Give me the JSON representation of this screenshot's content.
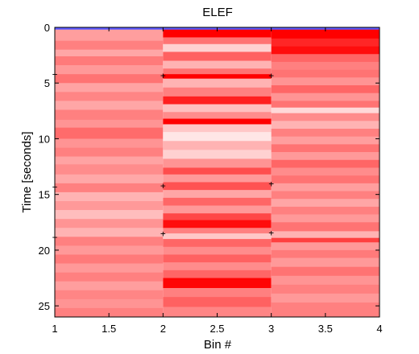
{
  "chart_data": {
    "type": "heatmap",
    "title": "ELEF",
    "xlabel": "Bin #",
    "ylabel": "Time [seconds]",
    "xlim": [
      1,
      4
    ],
    "ylim": [
      0,
      26
    ],
    "y_reversed": true,
    "x_ticks": [
      "1",
      "1.5",
      "2",
      "2.5",
      "3",
      "3.5",
      "4"
    ],
    "y_ticks": [
      "0",
      "5",
      "10",
      "15",
      "20",
      "25"
    ],
    "colormap": {
      "low": "#ffffff",
      "high": "#ff0000",
      "zero": "#0000ff"
    },
    "bins": [
      {
        "range": [
          1,
          2
        ],
        "rows": [
          [
            0.0,
            0.2,
            0.05
          ],
          [
            0.2,
            1.2,
            0.38
          ],
          [
            1.2,
            2.0,
            0.5
          ],
          [
            2.0,
            2.6,
            0.35
          ],
          [
            2.6,
            3.4,
            0.52
          ],
          [
            3.4,
            4.2,
            0.4
          ],
          [
            4.2,
            5.0,
            0.55
          ],
          [
            5.0,
            5.8,
            0.36
          ],
          [
            5.8,
            6.6,
            0.48
          ],
          [
            6.6,
            7.4,
            0.35
          ],
          [
            7.4,
            8.3,
            0.5
          ],
          [
            8.3,
            9.0,
            0.42
          ],
          [
            9.0,
            10.0,
            0.58
          ],
          [
            10.0,
            10.8,
            0.42
          ],
          [
            10.8,
            11.6,
            0.5
          ],
          [
            11.6,
            12.3,
            0.36
          ],
          [
            12.3,
            13.2,
            0.45
          ],
          [
            13.2,
            14.0,
            0.34
          ],
          [
            14.0,
            14.8,
            0.5
          ],
          [
            14.8,
            15.6,
            0.3
          ],
          [
            15.6,
            16.4,
            0.4
          ],
          [
            16.4,
            17.2,
            0.26
          ],
          [
            17.2,
            18.0,
            0.42
          ],
          [
            18.0,
            18.8,
            0.3
          ],
          [
            18.8,
            19.6,
            0.5
          ],
          [
            19.6,
            20.4,
            0.4
          ],
          [
            20.4,
            21.2,
            0.52
          ],
          [
            21.2,
            22.0,
            0.4
          ],
          [
            22.0,
            22.8,
            0.5
          ],
          [
            22.8,
            23.6,
            0.38
          ],
          [
            23.6,
            24.4,
            0.48
          ],
          [
            24.4,
            25.2,
            0.42
          ],
          [
            25.2,
            26.0,
            0.5
          ]
        ]
      },
      {
        "range": [
          2,
          3
        ],
        "rows": [
          [
            0.0,
            0.2,
            0.05
          ],
          [
            0.2,
            0.9,
            1.0
          ],
          [
            0.9,
            1.5,
            0.55
          ],
          [
            1.5,
            2.2,
            0.18
          ],
          [
            2.2,
            3.0,
            0.62
          ],
          [
            3.0,
            3.7,
            0.3
          ],
          [
            3.7,
            4.2,
            0.55
          ],
          [
            4.2,
            4.6,
            1.0
          ],
          [
            4.6,
            5.4,
            0.3
          ],
          [
            5.4,
            6.2,
            0.5
          ],
          [
            6.2,
            6.9,
            0.88
          ],
          [
            6.9,
            7.6,
            0.25
          ],
          [
            7.6,
            8.2,
            0.45
          ],
          [
            8.2,
            8.7,
            1.0
          ],
          [
            8.7,
            9.4,
            0.22
          ],
          [
            9.4,
            10.2,
            0.1
          ],
          [
            10.2,
            11.0,
            0.3
          ],
          [
            11.0,
            11.8,
            0.18
          ],
          [
            11.8,
            12.6,
            0.42
          ],
          [
            12.6,
            13.2,
            0.7
          ],
          [
            13.2,
            13.9,
            0.4
          ],
          [
            13.9,
            14.6,
            0.68
          ],
          [
            14.6,
            15.3,
            0.35
          ],
          [
            15.3,
            16.0,
            0.6
          ],
          [
            16.0,
            16.7,
            0.4
          ],
          [
            16.7,
            17.3,
            0.72
          ],
          [
            17.3,
            18.0,
            0.95
          ],
          [
            18.0,
            18.5,
            0.5
          ],
          [
            18.5,
            19.0,
            0.22
          ],
          [
            19.0,
            19.7,
            0.6
          ],
          [
            19.7,
            20.4,
            0.45
          ],
          [
            20.4,
            21.1,
            0.62
          ],
          [
            21.1,
            21.8,
            0.45
          ],
          [
            21.8,
            22.5,
            0.6
          ],
          [
            22.5,
            23.4,
            0.98
          ],
          [
            23.4,
            24.2,
            0.5
          ],
          [
            24.2,
            25.1,
            0.62
          ],
          [
            25.1,
            26.0,
            0.48
          ]
        ]
      },
      {
        "range": [
          3,
          4
        ],
        "rows": [
          [
            0.0,
            0.2,
            0.05
          ],
          [
            0.2,
            1.0,
            1.0
          ],
          [
            1.0,
            1.7,
            0.85
          ],
          [
            1.7,
            2.4,
            0.95
          ],
          [
            2.4,
            3.1,
            0.6
          ],
          [
            3.1,
            3.8,
            0.5
          ],
          [
            3.8,
            4.5,
            0.55
          ],
          [
            4.5,
            5.2,
            0.42
          ],
          [
            5.2,
            5.9,
            0.6
          ],
          [
            5.9,
            6.6,
            0.42
          ],
          [
            6.6,
            7.2,
            0.55
          ],
          [
            7.2,
            7.7,
            0.15
          ],
          [
            7.7,
            8.4,
            0.45
          ],
          [
            8.4,
            9.1,
            0.3
          ],
          [
            9.1,
            9.8,
            0.5
          ],
          [
            9.8,
            10.5,
            0.38
          ],
          [
            10.5,
            11.2,
            0.55
          ],
          [
            11.2,
            11.9,
            0.4
          ],
          [
            11.9,
            12.6,
            0.6
          ],
          [
            12.6,
            13.3,
            0.45
          ],
          [
            13.3,
            14.0,
            0.55
          ],
          [
            14.0,
            14.7,
            0.38
          ],
          [
            14.7,
            15.4,
            0.5
          ],
          [
            15.4,
            16.1,
            0.35
          ],
          [
            16.1,
            16.8,
            0.5
          ],
          [
            16.8,
            17.5,
            0.4
          ],
          [
            17.5,
            18.3,
            0.55
          ],
          [
            18.3,
            18.9,
            0.3
          ],
          [
            18.9,
            19.3,
            0.75
          ],
          [
            19.3,
            20.0,
            0.4
          ],
          [
            20.0,
            20.7,
            0.52
          ],
          [
            20.7,
            21.5,
            0.4
          ],
          [
            21.5,
            22.3,
            0.55
          ],
          [
            22.3,
            23.1,
            0.42
          ],
          [
            23.1,
            23.9,
            0.5
          ],
          [
            23.9,
            24.7,
            0.4
          ],
          [
            24.7,
            26.0,
            0.5
          ]
        ]
      }
    ],
    "boundary_markers": [
      {
        "x": 1,
        "y": 4.2
      },
      {
        "x": 1,
        "y": 14.3
      },
      {
        "x": 1,
        "y": 18.8
      },
      {
        "x": 2,
        "y": 4.3
      },
      {
        "x": 2,
        "y": 14.2
      },
      {
        "x": 2,
        "y": 18.5
      },
      {
        "x": 3,
        "y": 4.3
      },
      {
        "x": 3,
        "y": 14.0
      },
      {
        "x": 3,
        "y": 18.4
      }
    ],
    "grid": false,
    "legend": "none"
  }
}
